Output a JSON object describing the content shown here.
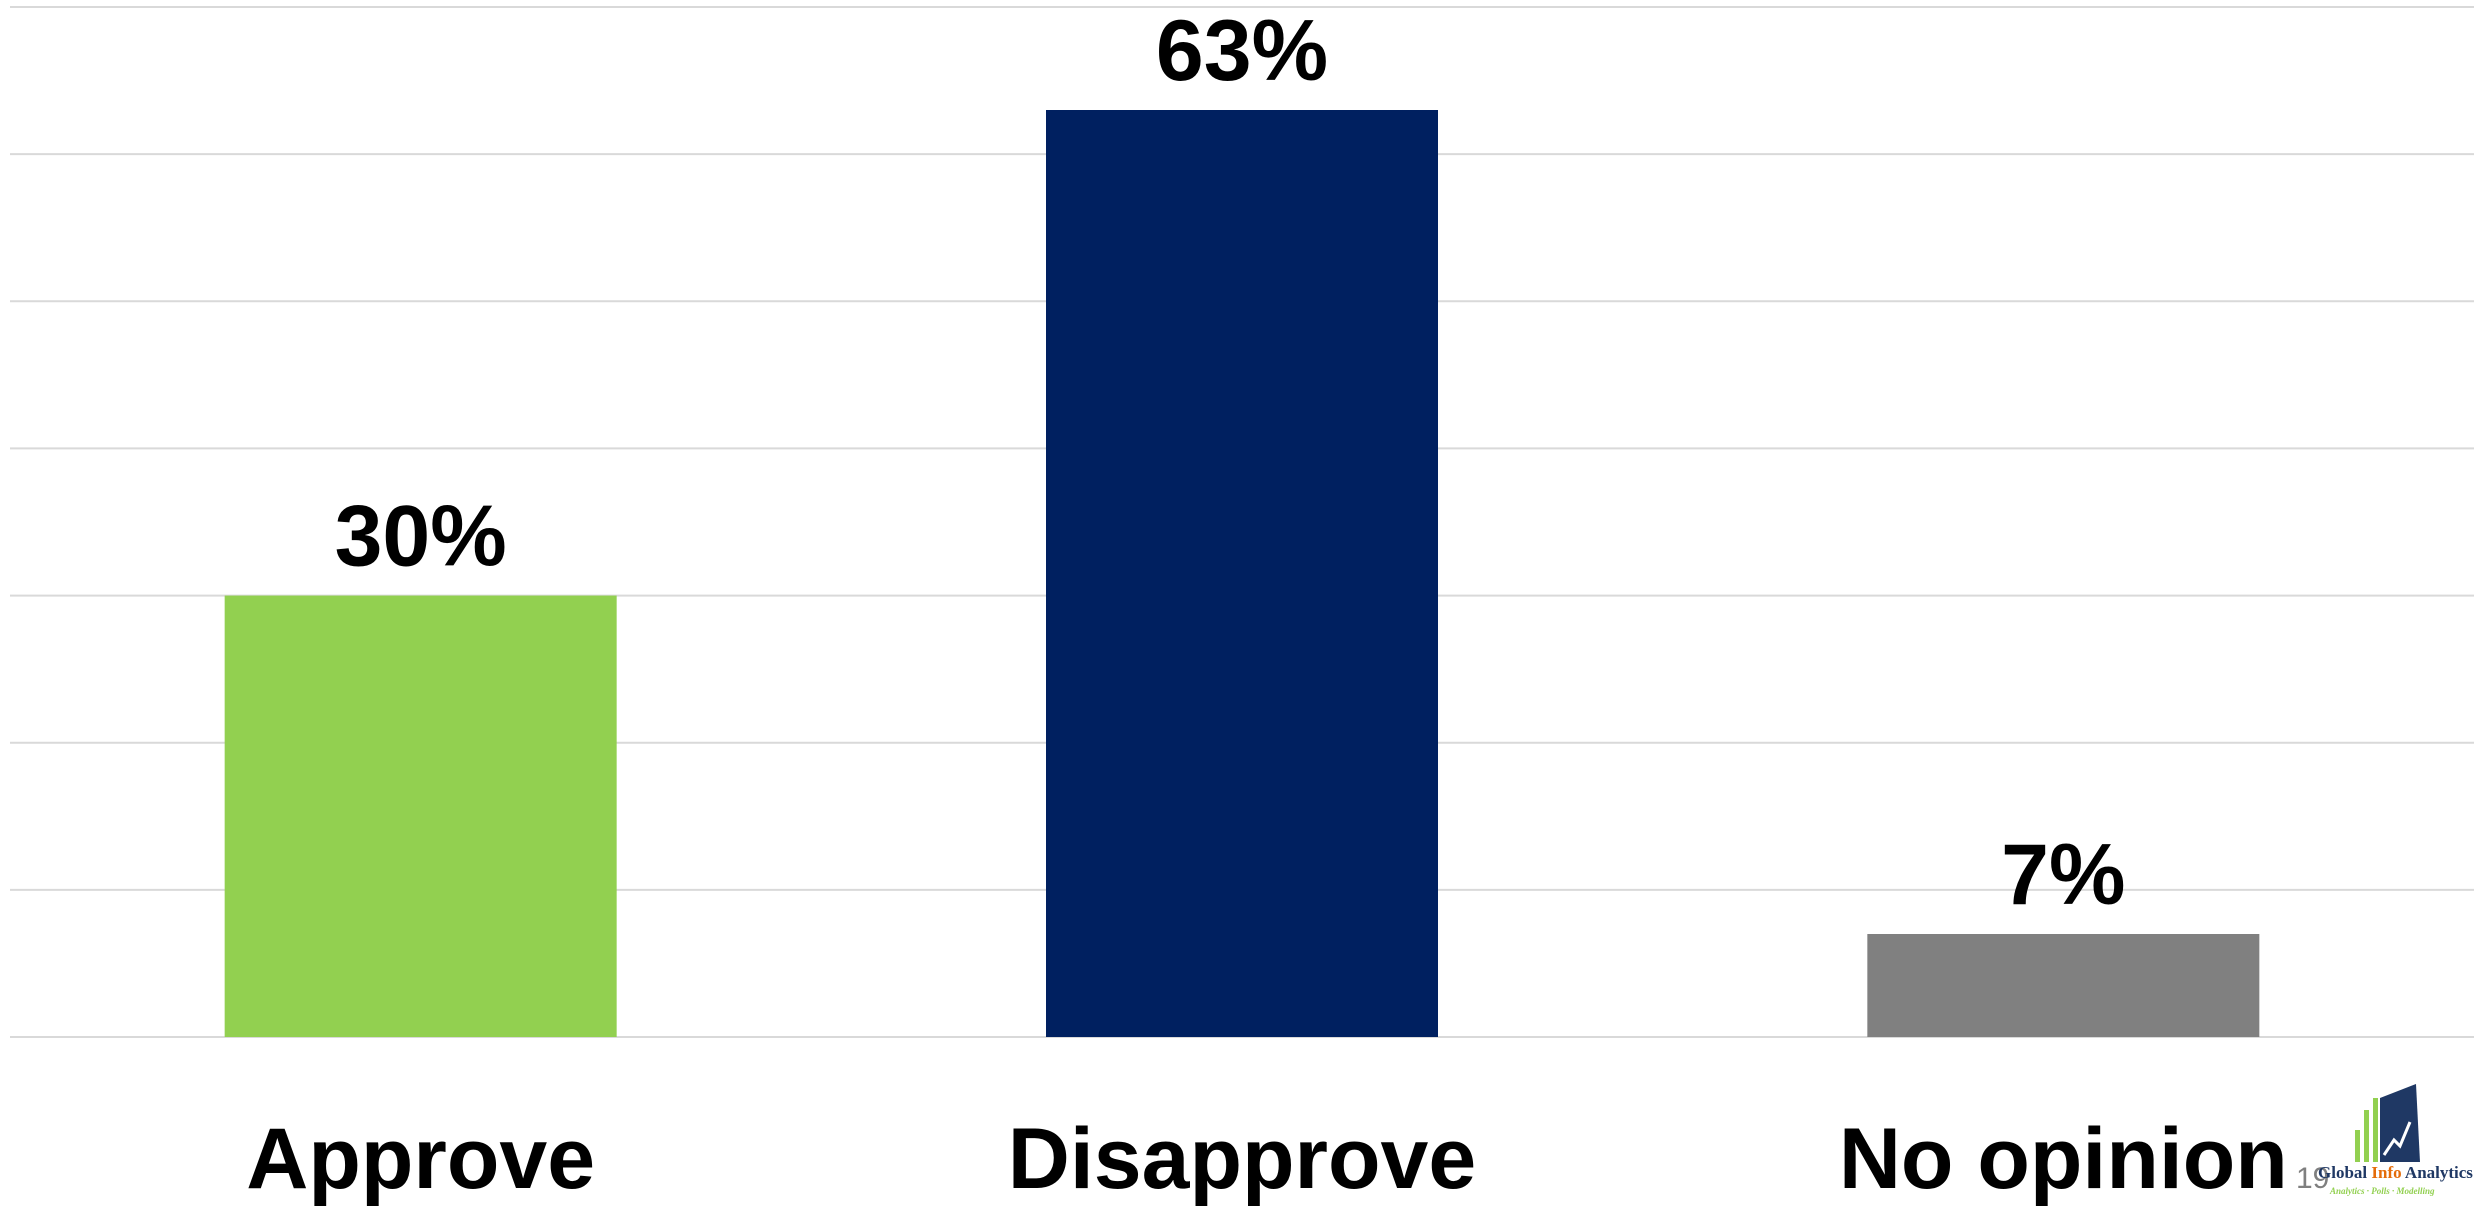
{
  "chart_data": {
    "type": "bar",
    "categories": [
      "Approve",
      "Disapprove",
      "No opinion"
    ],
    "values": [
      30,
      63,
      7
    ],
    "value_labels": [
      "30%",
      "63%",
      "7%"
    ],
    "colors": [
      "#92d050",
      "#002060",
      "#808080"
    ],
    "ylim": [
      0,
      70
    ],
    "grid": true,
    "legend": "none"
  },
  "footer": {
    "page_number": "19"
  },
  "logo": {
    "name_part1": "Global ",
    "name_part2": "Info",
    "name_part3": " Analytics",
    "tagline": "Analytics · Polls · Modelling",
    "colors": {
      "navy": "#1f3864",
      "orange": "#e46c0a",
      "green": "#92d050"
    }
  }
}
